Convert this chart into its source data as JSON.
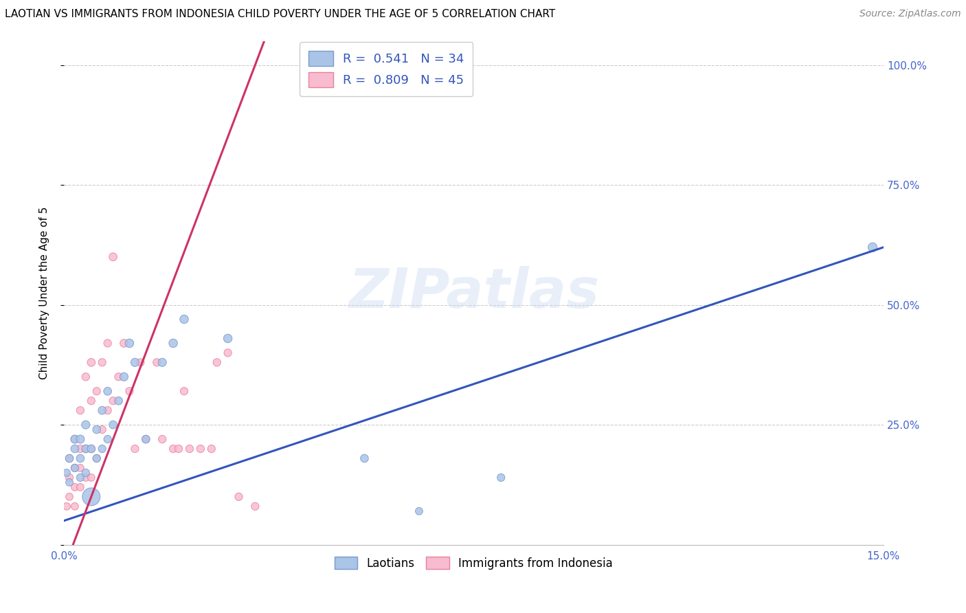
{
  "title": "LAOTIAN VS IMMIGRANTS FROM INDONESIA CHILD POVERTY UNDER THE AGE OF 5 CORRELATION CHART",
  "source": "Source: ZipAtlas.com",
  "ylabel": "Child Poverty Under the Age of 5",
  "xlim": [
    0.0,
    0.15
  ],
  "ylim": [
    0.0,
    1.05
  ],
  "xticks": [
    0.0,
    0.03,
    0.06,
    0.09,
    0.12,
    0.15
  ],
  "ytick_positions": [
    0.0,
    0.25,
    0.5,
    0.75,
    1.0
  ],
  "yticklabels_right": [
    "",
    "25.0%",
    "50.0%",
    "75.0%",
    "100.0%"
  ],
  "legend_r_line1": "R =  0.541   N = 34",
  "legend_r_line2": "R =  0.809   N = 45",
  "watermark": "ZIPatlas",
  "laotian_color": "#aac4e8",
  "laotian_edge": "#7799cc",
  "indonesia_color": "#f8bbd0",
  "indonesia_edge": "#e8829a",
  "blue_line_color": "#3355bb",
  "pink_line_color": "#cc3366",
  "laotian_x": [
    0.0005,
    0.001,
    0.001,
    0.002,
    0.002,
    0.002,
    0.003,
    0.003,
    0.003,
    0.004,
    0.004,
    0.004,
    0.005,
    0.005,
    0.006,
    0.006,
    0.007,
    0.007,
    0.008,
    0.008,
    0.009,
    0.01,
    0.011,
    0.012,
    0.013,
    0.015,
    0.018,
    0.02,
    0.022,
    0.03,
    0.055,
    0.065,
    0.08,
    0.148
  ],
  "laotian_y": [
    0.15,
    0.13,
    0.18,
    0.16,
    0.2,
    0.22,
    0.14,
    0.18,
    0.22,
    0.15,
    0.2,
    0.25,
    0.1,
    0.2,
    0.18,
    0.24,
    0.2,
    0.28,
    0.22,
    0.32,
    0.25,
    0.3,
    0.35,
    0.42,
    0.38,
    0.22,
    0.38,
    0.42,
    0.47,
    0.43,
    0.18,
    0.07,
    0.14,
    0.62
  ],
  "laotian_size": [
    60,
    60,
    70,
    65,
    70,
    75,
    65,
    70,
    75,
    65,
    70,
    75,
    350,
    70,
    65,
    70,
    65,
    70,
    65,
    70,
    70,
    70,
    75,
    80,
    75,
    70,
    75,
    80,
    80,
    80,
    70,
    60,
    65,
    90
  ],
  "indonesia_x": [
    0.0005,
    0.001,
    0.001,
    0.001,
    0.002,
    0.002,
    0.002,
    0.002,
    0.003,
    0.003,
    0.003,
    0.003,
    0.004,
    0.004,
    0.004,
    0.005,
    0.005,
    0.005,
    0.005,
    0.006,
    0.006,
    0.007,
    0.007,
    0.008,
    0.008,
    0.009,
    0.009,
    0.01,
    0.011,
    0.012,
    0.013,
    0.014,
    0.015,
    0.017,
    0.018,
    0.02,
    0.021,
    0.022,
    0.023,
    0.025,
    0.027,
    0.028,
    0.03,
    0.032,
    0.035
  ],
  "indonesia_y": [
    0.08,
    0.1,
    0.14,
    0.18,
    0.08,
    0.12,
    0.16,
    0.22,
    0.12,
    0.16,
    0.2,
    0.28,
    0.14,
    0.2,
    0.35,
    0.14,
    0.2,
    0.3,
    0.38,
    0.18,
    0.32,
    0.24,
    0.38,
    0.28,
    0.42,
    0.3,
    0.6,
    0.35,
    0.42,
    0.32,
    0.2,
    0.38,
    0.22,
    0.38,
    0.22,
    0.2,
    0.2,
    0.32,
    0.2,
    0.2,
    0.2,
    0.38,
    0.4,
    0.1,
    0.08
  ],
  "indonesia_size": [
    60,
    60,
    65,
    65,
    60,
    60,
    65,
    65,
    60,
    60,
    65,
    65,
    60,
    65,
    65,
    60,
    65,
    65,
    70,
    65,
    65,
    65,
    65,
    65,
    65,
    65,
    70,
    65,
    70,
    65,
    65,
    65,
    65,
    65,
    65,
    65,
    65,
    65,
    65,
    65,
    65,
    65,
    65,
    65,
    65
  ],
  "title_fontsize": 11,
  "axis_label_fontsize": 11,
  "tick_fontsize": 11,
  "source_fontsize": 10,
  "background_color": "#ffffff"
}
